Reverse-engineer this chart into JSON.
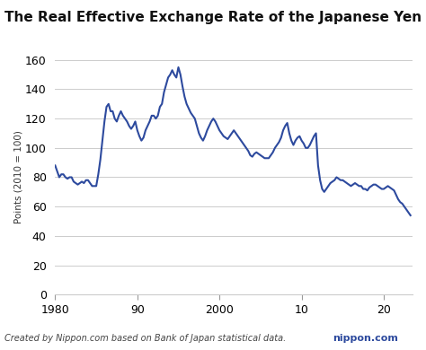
{
  "title": "The Real Effective Exchange Rate of the Japanese Yen",
  "ylabel": "Points (2010 = 100)",
  "footnote": "Created by Nippon.com based on Bank of Japan statistical data.",
  "xticks": [
    1980,
    1990,
    2000,
    2010,
    2020
  ],
  "xticklabels": [
    "1980",
    "90",
    "2000",
    "10",
    "20"
  ],
  "ylim": [
    0,
    160
  ],
  "yticks": [
    0,
    20,
    40,
    60,
    80,
    100,
    120,
    140,
    160
  ],
  "line_color": "#2d4a9e",
  "line_width": 1.5,
  "bg_color": "#ffffff",
  "grid_color": "#cccccc",
  "years": [
    1980.0,
    1980.25,
    1980.5,
    1980.75,
    1981.0,
    1981.25,
    1981.5,
    1981.75,
    1982.0,
    1982.25,
    1982.5,
    1982.75,
    1983.0,
    1983.25,
    1983.5,
    1983.75,
    1984.0,
    1984.25,
    1984.5,
    1984.75,
    1985.0,
    1985.25,
    1985.5,
    1985.75,
    1986.0,
    1986.25,
    1986.5,
    1986.75,
    1987.0,
    1987.25,
    1987.5,
    1987.75,
    1988.0,
    1988.25,
    1988.5,
    1988.75,
    1989.0,
    1989.25,
    1989.5,
    1989.75,
    1990.0,
    1990.25,
    1990.5,
    1990.75,
    1991.0,
    1991.25,
    1991.5,
    1991.75,
    1992.0,
    1992.25,
    1992.5,
    1992.75,
    1993.0,
    1993.25,
    1993.5,
    1993.75,
    1994.0,
    1994.25,
    1994.5,
    1994.75,
    1995.0,
    1995.25,
    1995.5,
    1995.75,
    1996.0,
    1996.25,
    1996.5,
    1996.75,
    1997.0,
    1997.25,
    1997.5,
    1997.75,
    1998.0,
    1998.25,
    1998.5,
    1998.75,
    1999.0,
    1999.25,
    1999.5,
    1999.75,
    2000.0,
    2000.25,
    2000.5,
    2000.75,
    2001.0,
    2001.25,
    2001.5,
    2001.75,
    2002.0,
    2002.25,
    2002.5,
    2002.75,
    2003.0,
    2003.25,
    2003.5,
    2003.75,
    2004.0,
    2004.25,
    2004.5,
    2004.75,
    2005.0,
    2005.25,
    2005.5,
    2005.75,
    2006.0,
    2006.25,
    2006.5,
    2006.75,
    2007.0,
    2007.25,
    2007.5,
    2007.75,
    2008.0,
    2008.25,
    2008.5,
    2008.75,
    2009.0,
    2009.25,
    2009.5,
    2009.75,
    2010.0,
    2010.25,
    2010.5,
    2010.75,
    2011.0,
    2011.25,
    2011.5,
    2011.75,
    2012.0,
    2012.25,
    2012.5,
    2012.75,
    2013.0,
    2013.25,
    2013.5,
    2013.75,
    2014.0,
    2014.25,
    2014.5,
    2014.75,
    2015.0,
    2015.25,
    2015.5,
    2015.75,
    2016.0,
    2016.25,
    2016.5,
    2016.75,
    2017.0,
    2017.25,
    2017.5,
    2017.75,
    2018.0,
    2018.25,
    2018.5,
    2018.75,
    2019.0,
    2019.25,
    2019.5,
    2019.75,
    2020.0,
    2020.25,
    2020.5,
    2020.75,
    2021.0,
    2021.25,
    2021.5,
    2021.75,
    2022.0,
    2022.25,
    2022.5,
    2022.75,
    2023.0,
    2023.25
  ],
  "values": [
    88,
    84,
    80,
    82,
    82,
    80,
    79,
    80,
    80,
    77,
    76,
    75,
    76,
    77,
    76,
    78,
    78,
    76,
    74,
    74,
    74,
    82,
    92,
    105,
    118,
    128,
    130,
    125,
    125,
    120,
    118,
    122,
    125,
    122,
    120,
    118,
    115,
    113,
    115,
    118,
    112,
    108,
    105,
    107,
    112,
    115,
    118,
    122,
    122,
    120,
    122,
    128,
    130,
    138,
    143,
    148,
    150,
    153,
    150,
    148,
    155,
    150,
    142,
    135,
    130,
    127,
    124,
    122,
    120,
    115,
    110,
    107,
    105,
    108,
    112,
    115,
    118,
    120,
    118,
    115,
    112,
    110,
    108,
    107,
    106,
    108,
    110,
    112,
    110,
    108,
    106,
    104,
    102,
    100,
    98,
    95,
    94,
    96,
    97,
    96,
    95,
    94,
    93,
    93,
    93,
    95,
    97,
    100,
    102,
    104,
    107,
    112,
    115,
    117,
    110,
    105,
    102,
    105,
    107,
    108,
    105,
    103,
    100,
    100,
    102,
    105,
    108,
    110,
    88,
    78,
    72,
    70,
    72,
    74,
    76,
    77,
    78,
    80,
    79,
    78,
    78,
    77,
    76,
    75,
    74,
    75,
    76,
    75,
    74,
    74,
    72,
    72,
    71,
    73,
    74,
    75,
    75,
    74,
    73,
    72,
    72,
    73,
    74,
    73,
    72,
    71,
    68,
    65,
    63,
    62,
    60,
    58,
    56,
    54
  ]
}
